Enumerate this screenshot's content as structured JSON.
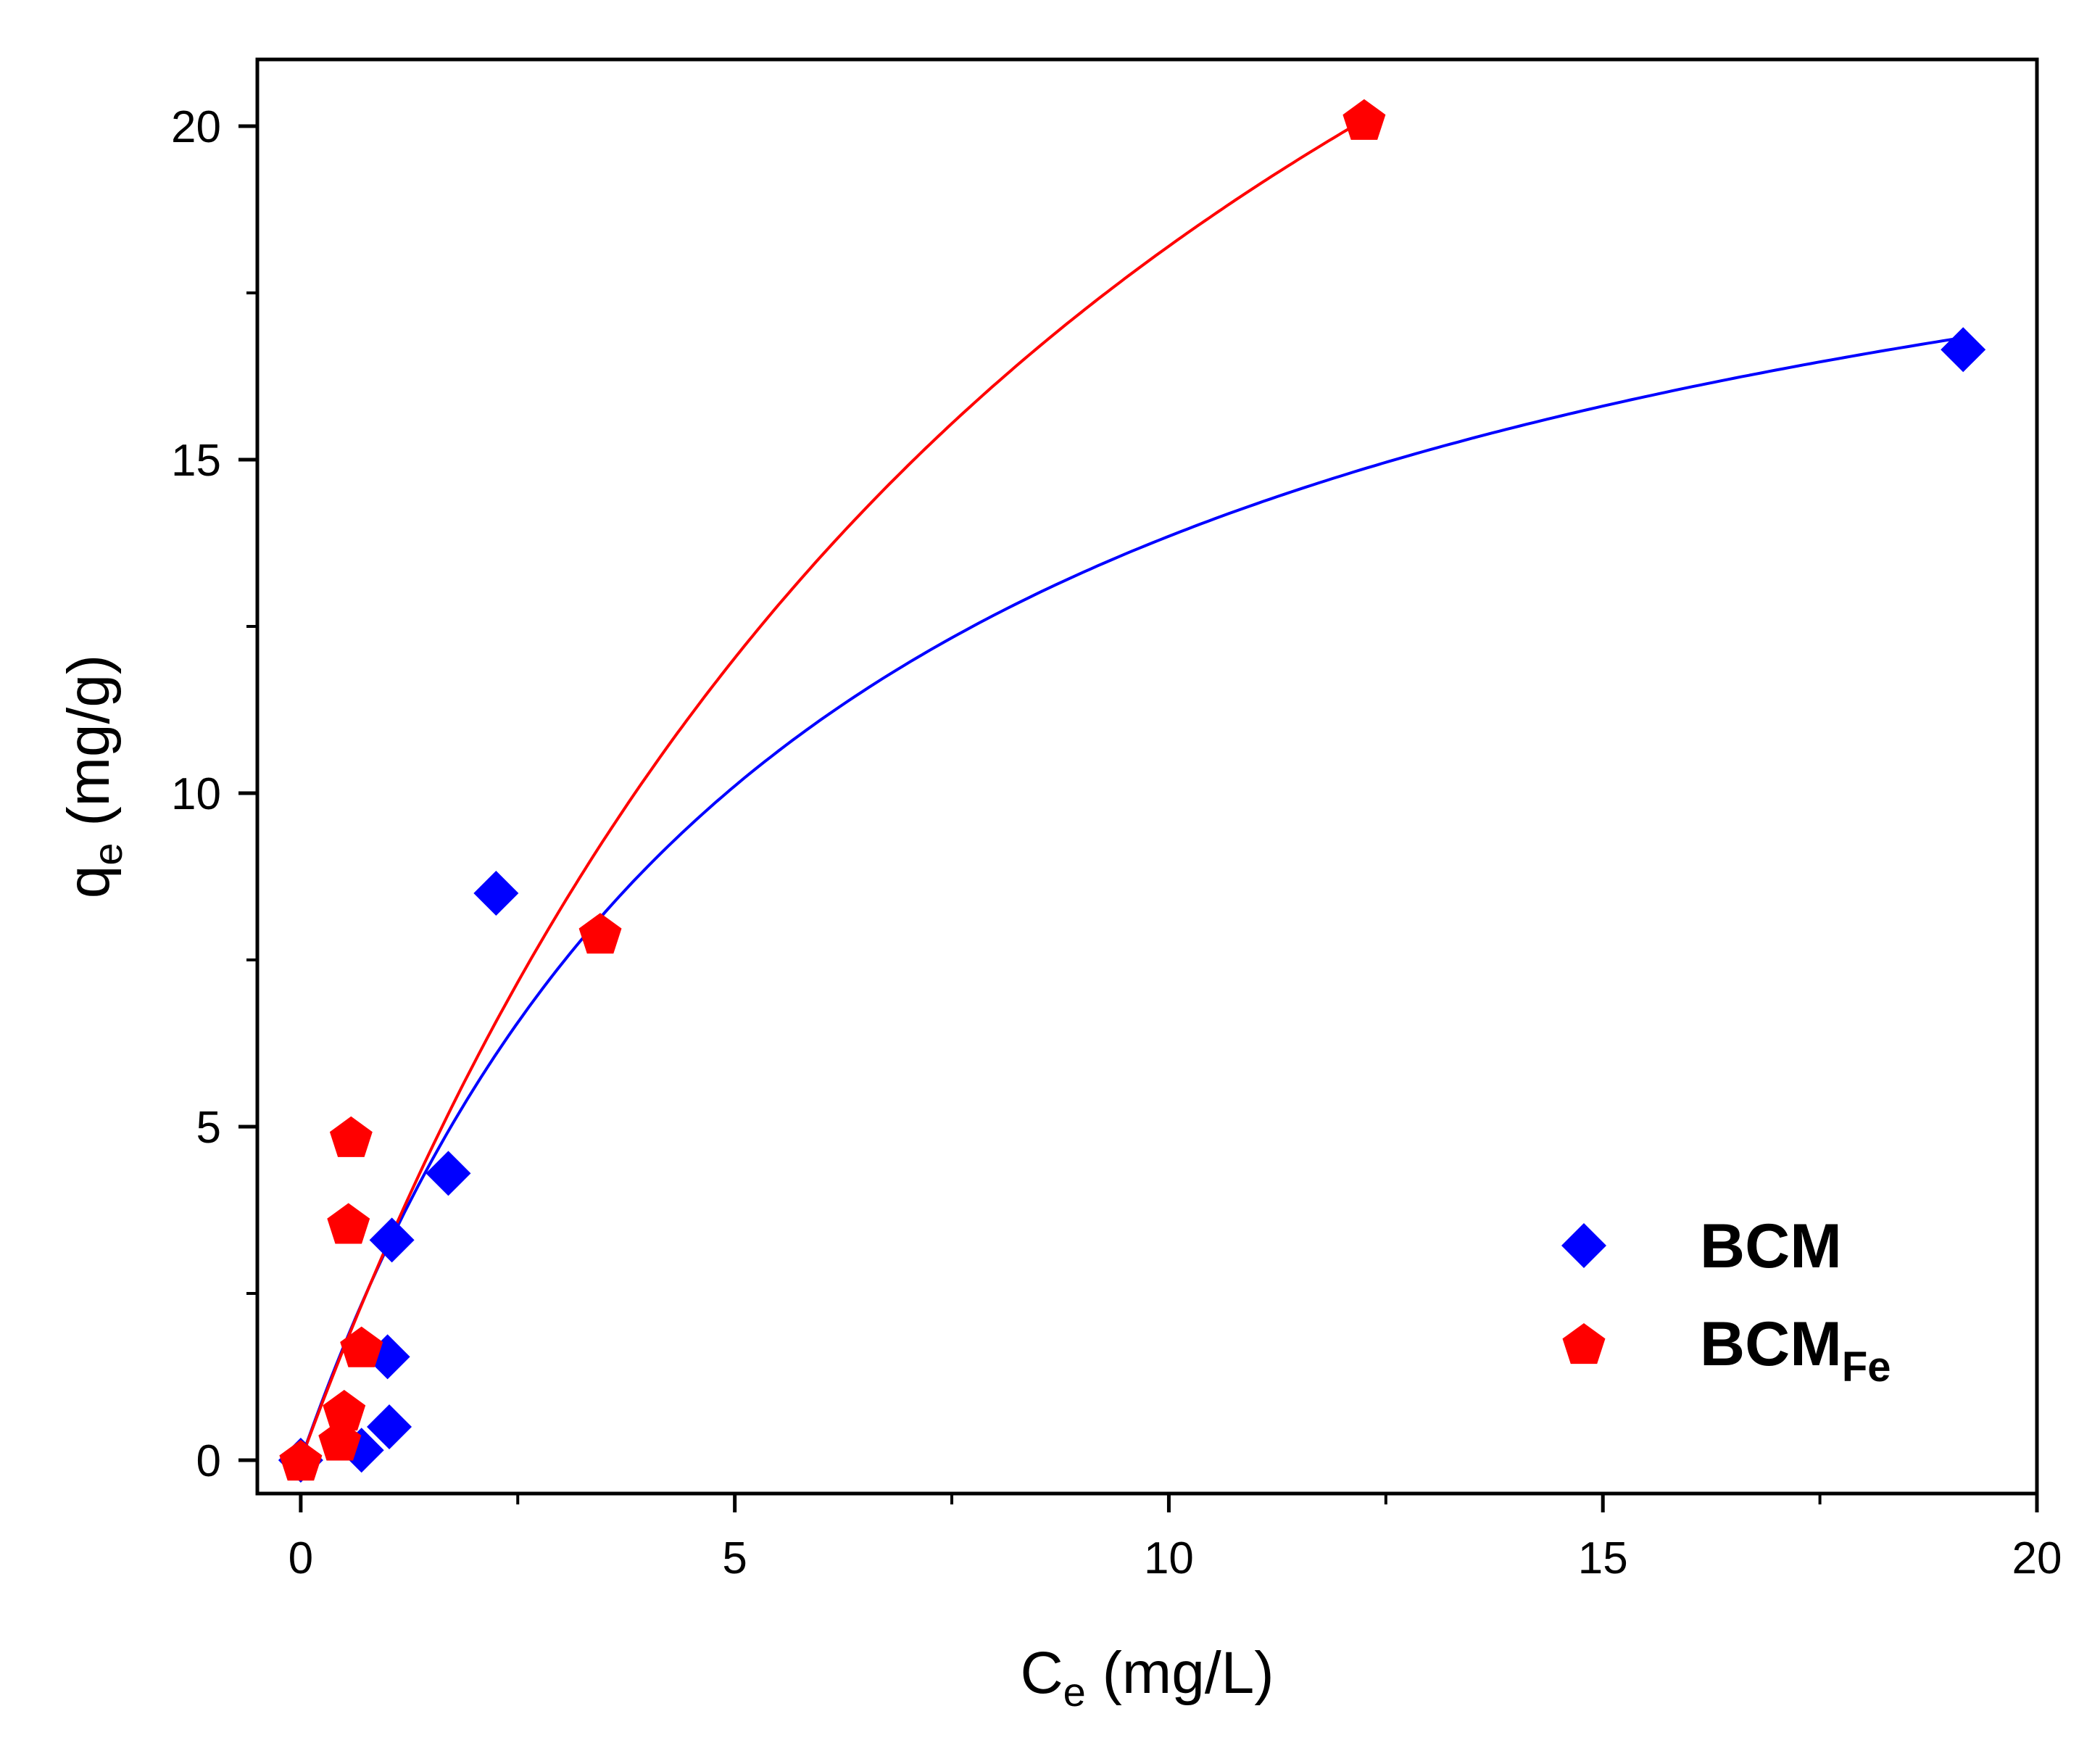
{
  "chart_data": {
    "type": "scatter",
    "title": "",
    "xlabel": {
      "main": "C",
      "sub": "e",
      "unit": " (mg/L)"
    },
    "ylabel": {
      "main": "q",
      "sub": "e",
      "unit": " (mg/g)"
    },
    "xlim": [
      -0.5,
      20
    ],
    "ylim": [
      -0.5,
      21
    ],
    "grid": false,
    "legend_position": "bottom-right",
    "x_ticks": [
      {
        "value": 0,
        "label": "0"
      },
      {
        "value": 5,
        "label": "5"
      },
      {
        "value": 10,
        "label": "10"
      },
      {
        "value": 15,
        "label": "15"
      },
      {
        "value": 20,
        "label": "20"
      }
    ],
    "x_minor_ticks": [
      2.5,
      7.5,
      12.5,
      17.5
    ],
    "y_ticks": [
      {
        "value": 0,
        "label": "0"
      },
      {
        "value": 5,
        "label": "5"
      },
      {
        "value": 10,
        "label": "10"
      },
      {
        "value": 15,
        "label": "15"
      },
      {
        "value": 20,
        "label": "20"
      }
    ],
    "y_minor_ticks": [
      2.5,
      7.5,
      12.5,
      17.5
    ],
    "series": [
      {
        "name": "BCM",
        "label_main": "BCM",
        "label_sub": "",
        "marker": "diamond",
        "color": "#0000ff",
        "points": [
          {
            "x": 0.0,
            "y": 0.0
          },
          {
            "x": 0.7,
            "y": 0.15
          },
          {
            "x": 1.02,
            "y": 0.5
          },
          {
            "x": 1.0,
            "y": 1.55
          },
          {
            "x": 1.05,
            "y": 3.3
          },
          {
            "x": 1.7,
            "y": 4.3
          },
          {
            "x": 2.25,
            "y": 8.5
          },
          {
            "x": 19.15,
            "y": 16.65
          }
        ],
        "fit": {
          "model": "langmuir",
          "qmax": 22.0,
          "k": 0.17,
          "x_range": [
            0.0,
            19.15
          ]
        }
      },
      {
        "name": "BCM_Fe",
        "label_main": "BCM",
        "label_sub": "Fe",
        "marker": "pentagon",
        "color": "#ff0000",
        "points": [
          {
            "x": 0.0,
            "y": 0.0
          },
          {
            "x": 0.45,
            "y": 0.3
          },
          {
            "x": 0.5,
            "y": 0.75
          },
          {
            "x": 0.7,
            "y": 1.7
          },
          {
            "x": 0.55,
            "y": 3.55
          },
          {
            "x": 0.58,
            "y": 4.85
          },
          {
            "x": 3.45,
            "y": 7.9
          },
          {
            "x": 12.25,
            "y": 20.1
          }
        ],
        "fit": {
          "model": "langmuir",
          "qmax": 37.4,
          "k": 0.0948,
          "x_range": [
            0.0,
            12.25
          ]
        }
      }
    ]
  }
}
